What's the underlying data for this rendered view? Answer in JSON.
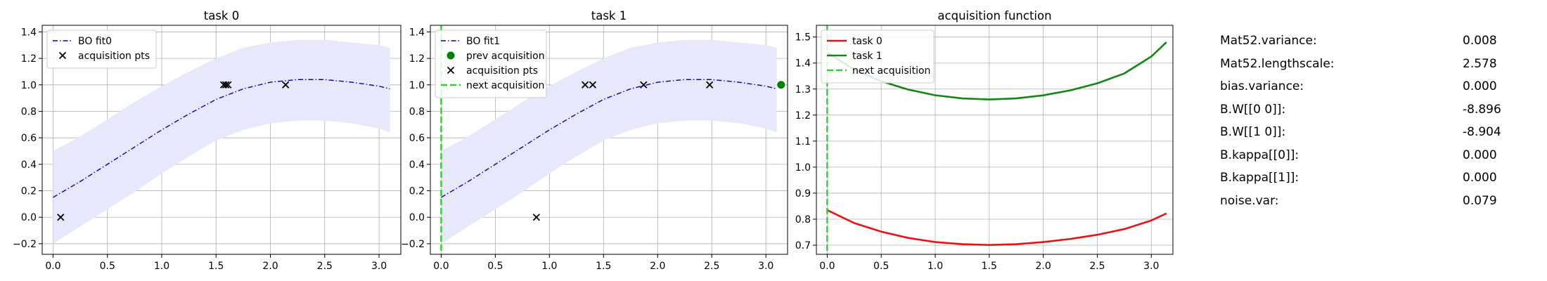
{
  "chart_data": [
    {
      "type": "line",
      "title": "task 0",
      "xlim": [
        -0.1,
        3.2
      ],
      "ylim": [
        -0.28,
        1.45
      ],
      "xticks": [
        0.0,
        0.5,
        1.0,
        1.5,
        2.0,
        2.5,
        3.0
      ],
      "xtick_labels": [
        "0.0",
        "0.5",
        "1.0",
        "1.5",
        "2.0",
        "2.5",
        "3.0"
      ],
      "yticks": [
        -0.2,
        0.0,
        0.2,
        0.4,
        0.6,
        0.8,
        1.0,
        1.2,
        1.4
      ],
      "ytick_labels": [
        "−0.2",
        "0.0",
        "0.2",
        "0.4",
        "0.6",
        "0.8",
        "1.0",
        "1.2",
        "1.4"
      ],
      "grid": true,
      "legend_position": "top-left",
      "legend": [
        "BO fit0",
        "acquisition pts"
      ],
      "fit": {
        "x": [
          0.0,
          0.25,
          0.5,
          0.75,
          1.0,
          1.25,
          1.5,
          1.75,
          2.0,
          2.25,
          2.5,
          2.75,
          3.0,
          3.1
        ],
        "mean": [
          0.15,
          0.27,
          0.4,
          0.53,
          0.66,
          0.78,
          0.89,
          0.97,
          1.02,
          1.04,
          1.04,
          1.02,
          0.99,
          0.97
        ],
        "upper": [
          0.5,
          0.61,
          0.74,
          0.87,
          0.99,
          1.1,
          1.2,
          1.28,
          1.32,
          1.34,
          1.34,
          1.32,
          1.3,
          1.28
        ],
        "lower": [
          -0.2,
          -0.07,
          0.06,
          0.19,
          0.33,
          0.46,
          0.58,
          0.66,
          0.71,
          0.73,
          0.73,
          0.71,
          0.67,
          0.64
        ],
        "color": "#0000cc",
        "band_color": "#e8e8fc"
      },
      "acquisition_pts": {
        "x": [
          0.07,
          1.57,
          1.59,
          1.61,
          2.14
        ],
        "y": [
          0.0,
          1.0,
          1.0,
          1.0,
          1.0
        ]
      }
    },
    {
      "type": "line",
      "title": "task 1",
      "xlim": [
        -0.1,
        3.2
      ],
      "ylim": [
        -0.28,
        1.45
      ],
      "xticks": [
        0.0,
        0.5,
        1.0,
        1.5,
        2.0,
        2.5,
        3.0
      ],
      "xtick_labels": [
        "0.0",
        "0.5",
        "1.0",
        "1.5",
        "2.0",
        "2.5",
        "3.0"
      ],
      "yticks": [
        -0.2,
        0.0,
        0.2,
        0.4,
        0.6,
        0.8,
        1.0,
        1.2,
        1.4
      ],
      "ytick_labels": [
        "−0.2",
        "0.0",
        "0.2",
        "0.4",
        "0.6",
        "0.8",
        "1.0",
        "1.2",
        "1.4"
      ],
      "grid": true,
      "legend_position": "top-left",
      "legend": [
        "BO fit1",
        "prev acquisition",
        "acquisition pts",
        "next acquisition"
      ],
      "fit": {
        "x": [
          0.0,
          0.25,
          0.5,
          0.75,
          1.0,
          1.25,
          1.5,
          1.75,
          2.0,
          2.25,
          2.5,
          2.75,
          3.0,
          3.1
        ],
        "mean": [
          0.15,
          0.27,
          0.4,
          0.53,
          0.66,
          0.78,
          0.89,
          0.97,
          1.02,
          1.04,
          1.04,
          1.02,
          0.99,
          0.97
        ],
        "upper": [
          0.5,
          0.61,
          0.74,
          0.87,
          0.99,
          1.1,
          1.2,
          1.28,
          1.32,
          1.34,
          1.34,
          1.32,
          1.3,
          1.28
        ],
        "lower": [
          -0.2,
          -0.07,
          0.06,
          0.19,
          0.33,
          0.46,
          0.58,
          0.66,
          0.71,
          0.73,
          0.73,
          0.71,
          0.67,
          0.64
        ],
        "color": "#0000cc",
        "band_color": "#e8e8fc"
      },
      "prev_acquisition": {
        "x": [
          3.14
        ],
        "y": [
          1.0
        ],
        "color": "#008000"
      },
      "acquisition_pts": {
        "x": [
          0.88,
          1.33,
          1.4,
          1.87,
          2.48
        ],
        "y": [
          0.0,
          1.0,
          1.0,
          1.0,
          1.0
        ]
      },
      "next_acquisition_x": 0.0,
      "next_color": "#33cc33"
    },
    {
      "type": "line",
      "title": "acquisition function",
      "xlim": [
        -0.1,
        3.2
      ],
      "ylim": [
        0.665,
        1.545
      ],
      "xticks": [
        0.0,
        0.5,
        1.0,
        1.5,
        2.0,
        2.5,
        3.0
      ],
      "xtick_labels": [
        "0.0",
        "0.5",
        "1.0",
        "1.5",
        "2.0",
        "2.5",
        "3.0"
      ],
      "yticks": [
        0.7,
        0.8,
        0.9,
        1.0,
        1.1,
        1.2,
        1.3,
        1.4,
        1.5
      ],
      "ytick_labels": [
        "0.7",
        "0.8",
        "0.9",
        "1.0",
        "1.1",
        "1.2",
        "1.3",
        "1.4",
        "1.5"
      ],
      "grid": true,
      "legend_position": "top-left",
      "legend": [
        "task 0",
        "task 1",
        "next acquisition"
      ],
      "series": [
        {
          "name": "task 0",
          "color": "#ee1111",
          "x": [
            0.0,
            0.25,
            0.5,
            0.75,
            1.0,
            1.25,
            1.5,
            1.75,
            2.0,
            2.25,
            2.5,
            2.75,
            3.0,
            3.14
          ],
          "values": [
            0.835,
            0.785,
            0.752,
            0.728,
            0.712,
            0.704,
            0.701,
            0.704,
            0.712,
            0.724,
            0.74,
            0.762,
            0.795,
            0.822
          ]
        },
        {
          "name": "task 1",
          "color": "#118811",
          "x": [
            0.0,
            0.25,
            0.5,
            0.75,
            1.0,
            1.25,
            1.5,
            1.75,
            2.0,
            2.25,
            2.5,
            2.75,
            3.0,
            3.14
          ],
          "values": [
            1.44,
            1.375,
            1.33,
            1.298,
            1.276,
            1.264,
            1.26,
            1.264,
            1.276,
            1.295,
            1.322,
            1.36,
            1.425,
            1.48
          ]
        }
      ],
      "next_acquisition_x": 0.0,
      "next_color": "#33cc33"
    }
  ],
  "params": [
    {
      "name": "Mat52.variance:",
      "value": "0.008"
    },
    {
      "name": "Mat52.lengthscale:",
      "value": "2.578"
    },
    {
      "name": "bias.variance:",
      "value": "0.000"
    },
    {
      "name": "B.W[[0 0]]:",
      "value": "-8.896"
    },
    {
      "name": "B.W[[1 0]]:",
      "value": "-8.904"
    },
    {
      "name": "B.kappa[[0]]:",
      "value": "0.000"
    },
    {
      "name": "B.kappa[[1]]:",
      "value": "0.000"
    },
    {
      "name": "noise.var:",
      "value": "0.079"
    }
  ]
}
